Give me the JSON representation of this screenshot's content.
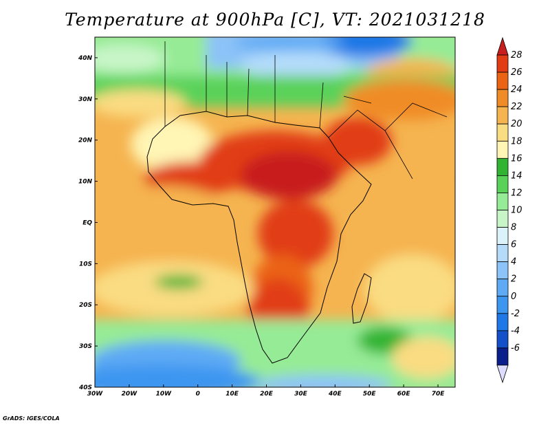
{
  "title": "Temperature at 900hPa [C], VT: 2021031218",
  "credit": "GrADS: IGES/COLA",
  "map": {
    "projection": "lat-lon",
    "lon_range": [
      -30,
      75
    ],
    "lat_range": [
      -40,
      45
    ],
    "x_ticks": [
      "30W",
      "20W",
      "10W",
      "0",
      "10E",
      "20E",
      "30E",
      "40E",
      "50E",
      "60E",
      "70E"
    ],
    "y_ticks": [
      "40S",
      "30S",
      "20S",
      "10S",
      "EQ",
      "10N",
      "20N",
      "30N",
      "40N"
    ]
  },
  "colorbar": {
    "labels": [
      "-6",
      "-4",
      "-2",
      "0",
      "2",
      "4",
      "6",
      "8",
      "10",
      "12",
      "14",
      "16",
      "18",
      "20",
      "22",
      "24",
      "26",
      "28"
    ],
    "colors": [
      "#0a1f8a",
      "#1450c8",
      "#1f78e6",
      "#3c96f0",
      "#5faaf5",
      "#8cc3f8",
      "#b4dcfa",
      "#dcf2fa",
      "#c8f5c8",
      "#96eb96",
      "#5ad25a",
      "#32b432",
      "#fff5b4",
      "#fadc82",
      "#f5b450",
      "#f08c28",
      "#eb6414",
      "#e13c14",
      "#c81e1e"
    ],
    "under_color": "#ddddff"
  }
}
